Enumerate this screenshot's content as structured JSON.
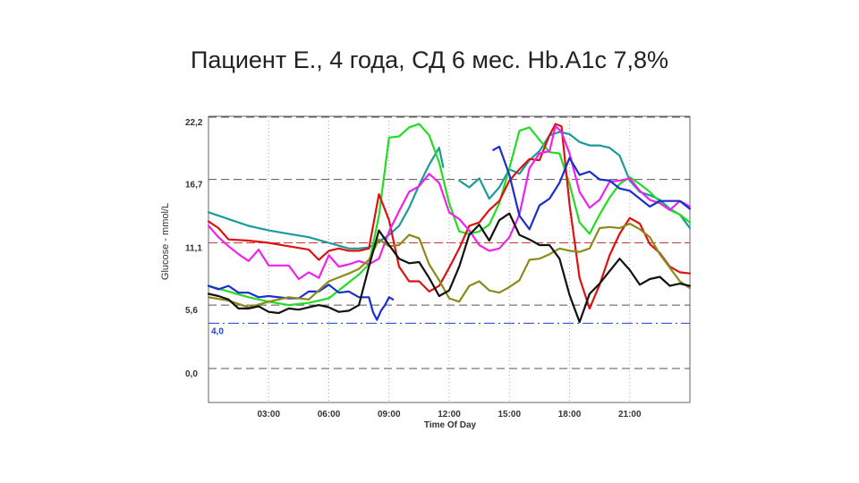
{
  "title": "Пациент Е., 4 года, СД 6 мес. Hb.A1c 7,8%",
  "chart_data": {
    "type": "line",
    "title": "",
    "xlabel": "Time Of Day",
    "ylabel": "Glucose - mmol/L",
    "xlim": [
      0,
      24
    ],
    "ylim": [
      0,
      22.2
    ],
    "x_ticks": [
      {
        "value": 3,
        "label": "03:00"
      },
      {
        "value": 6,
        "label": "06:00"
      },
      {
        "value": 9,
        "label": "09:00"
      },
      {
        "value": 12,
        "label": "12:00"
      },
      {
        "value": 15,
        "label": "15:00"
      },
      {
        "value": 18,
        "label": "18:00"
      },
      {
        "value": 21,
        "label": "21:00"
      }
    ],
    "y_ticks": [
      {
        "value": 0,
        "label": "0,0"
      },
      {
        "value": 5.6,
        "label": "5,6"
      },
      {
        "value": 11.1,
        "label": "11,1"
      },
      {
        "value": 16.7,
        "label": "16,7"
      },
      {
        "value": 22.2,
        "label": "22,2"
      }
    ],
    "reference_lines": [
      {
        "value": 4.0,
        "label": "4,0",
        "color": "#1a3fd6"
      },
      {
        "value": 11.1,
        "label": "",
        "color": "#cc3333"
      }
    ],
    "grid": true,
    "series": [
      {
        "color": "#1a9a9a",
        "x": [
          0,
          1,
          2,
          3,
          4,
          5,
          6,
          7,
          7.5,
          8,
          8.5,
          9,
          9.5,
          10,
          10.5,
          11,
          11.5,
          11.7
        ],
        "y": [
          13.8,
          13.2,
          12.6,
          12.2,
          11.9,
          11.6,
          11.1,
          10.6,
          10.6,
          10.7,
          11.2,
          11.8,
          12.6,
          14.2,
          16.2,
          18.0,
          19.5,
          17.8
        ]
      },
      {
        "color": "#1a9a9a",
        "x": [
          12.5,
          13,
          13.5,
          14,
          14.5,
          15,
          15.5,
          16,
          16.5,
          17,
          17.5,
          18,
          18.5,
          19,
          19.5,
          20,
          20.5,
          21,
          21.5,
          22,
          22.5,
          23,
          23.5,
          24
        ],
        "y": [
          16.6,
          16.0,
          16.8,
          15.0,
          16.0,
          17.6,
          17.2,
          18.4,
          19.2,
          20.6,
          20.9,
          20.7,
          20.0,
          19.7,
          19.7,
          19.5,
          18.8,
          16.6,
          15.6,
          15.3,
          14.9,
          14.1,
          13.6,
          12.4
        ]
      },
      {
        "color": "#22dd22",
        "x": [
          0,
          1,
          2,
          3,
          4,
          5,
          6,
          7,
          7.5,
          8,
          8.5,
          9,
          9.5,
          10,
          10.5,
          11,
          11.5,
          12,
          12.5,
          13,
          13.5,
          14,
          14.5,
          15,
          15.5,
          16,
          16.5,
          17,
          17.5,
          18,
          18.5,
          19,
          19.5,
          20,
          20.5,
          21,
          21.5,
          22,
          22.5,
          23,
          23.5,
          24
        ],
        "y": [
          7.3,
          6.8,
          6.3,
          5.9,
          5.6,
          5.8,
          6.2,
          7.6,
          8.3,
          9.2,
          13.5,
          20.4,
          20.5,
          21.3,
          21.6,
          20.6,
          18.2,
          14.6,
          12.1,
          11.9,
          12.1,
          12.7,
          14.6,
          17.7,
          21.0,
          21.3,
          20.2,
          19.1,
          19.0,
          16.3,
          12.9,
          11.9,
          13.6,
          15.1,
          16.3,
          16.9,
          16.3,
          15.6,
          14.7,
          14.0,
          13.6,
          12.9
        ]
      },
      {
        "color": "#dd1111",
        "x": [
          0,
          0.5,
          1,
          2,
          3,
          4,
          5,
          5.5,
          6,
          6.5,
          7,
          7.5,
          8,
          8.5,
          9,
          9.5,
          10,
          10.5,
          11,
          11.5,
          12,
          12.5,
          13,
          13.5,
          14,
          14.5,
          15,
          15.5,
          16,
          16.5,
          17,
          17.3,
          17.6,
          18,
          18.5,
          19,
          19.5,
          20,
          20.5,
          21,
          21.5,
          22,
          22.5,
          23,
          23.5,
          24
        ],
        "y": [
          13.0,
          12.4,
          11.4,
          11.3,
          11.1,
          10.8,
          10.5,
          9.6,
          10.4,
          10.6,
          10.4,
          10.4,
          10.6,
          15.4,
          13.1,
          9.0,
          7.7,
          7.7,
          6.8,
          7.3,
          8.9,
          10.6,
          12.6,
          12.9,
          14.0,
          14.8,
          16.6,
          17.6,
          18.5,
          18.4,
          20.6,
          21.6,
          21.4,
          14.5,
          8.0,
          5.3,
          7.4,
          10.0,
          11.9,
          13.3,
          12.8,
          11.0,
          10.2,
          9.0,
          8.5,
          8.4
        ]
      },
      {
        "color": "#ee22ee",
        "x": [
          0,
          0.5,
          1,
          1.5,
          2,
          2.5,
          3,
          3.5,
          4,
          4.5,
          5,
          5.5,
          6,
          6.5,
          7,
          7.5,
          8,
          8.5,
          9,
          9.5,
          10,
          10.5,
          11,
          11.5,
          12,
          12.5,
          13,
          13.5,
          14,
          14.5,
          15,
          15.5,
          16,
          16.5,
          17,
          17.3,
          17.6,
          18,
          18.5,
          19,
          19.5,
          20,
          20.5,
          21,
          21.5,
          22,
          22.5,
          23,
          23.5,
          24
        ],
        "y": [
          12.6,
          11.6,
          10.8,
          10.1,
          9.5,
          10.5,
          9.1,
          9.1,
          9.1,
          7.9,
          8.5,
          8.0,
          10.0,
          9.0,
          9.2,
          9.5,
          9.2,
          9.7,
          12.1,
          13.9,
          15.6,
          16.1,
          17.2,
          16.4,
          13.8,
          13.2,
          12.2,
          10.9,
          10.4,
          10.6,
          11.6,
          13.6,
          17.7,
          19.0,
          19.2,
          21.4,
          20.9,
          19.0,
          15.6,
          14.2,
          14.9,
          16.5,
          16.6,
          16.8,
          15.7,
          14.9,
          14.6,
          14.0,
          14.8,
          14.3
        ]
      },
      {
        "color": "#1a2ecc",
        "x": [
          0,
          0.5,
          1,
          1.5,
          2,
          2.5,
          3,
          3.5,
          4,
          4.5,
          5,
          5.5,
          6,
          6.5,
          7,
          7.5,
          8,
          8.2,
          8.4,
          8.6,
          8.8,
          9,
          9.2
        ],
        "y": [
          7.3,
          7.0,
          7.3,
          6.7,
          6.7,
          6.3,
          6.4,
          6.3,
          6.2,
          6.2,
          6.8,
          6.8,
          7.4,
          6.7,
          6.8,
          6.3,
          6.3,
          5.0,
          4.3,
          5.1,
          5.6,
          6.3,
          6.1
        ]
      },
      {
        "color": "#1a2ecc",
        "x": [
          14.2,
          14.5,
          15,
          15.5,
          16,
          16.5,
          17,
          17.5,
          18,
          18.5,
          19,
          19.5,
          20,
          20.5,
          21,
          21.5,
          22,
          22.5,
          23,
          23.5,
          24
        ],
        "y": [
          19.3,
          19.6,
          17.1,
          13.5,
          12.3,
          14.4,
          15.0,
          16.4,
          18.6,
          17.1,
          17.4,
          16.7,
          16.6,
          15.9,
          15.7,
          15.0,
          14.3,
          14.8,
          14.8,
          14.8,
          14.1
        ]
      },
      {
        "color": "#8b8a1a",
        "x": [
          0,
          1,
          2,
          3,
          4,
          5,
          6,
          7,
          7.5,
          8,
          8.5,
          9,
          9.5,
          10,
          10.5,
          11,
          11.5,
          12,
          12.5,
          13,
          13.5,
          14,
          14.5,
          15,
          15.5,
          16,
          16.5,
          17,
          17.5,
          18,
          18.5,
          19,
          19.5,
          20,
          20.5,
          21,
          21.5,
          22,
          22.5,
          23,
          23.5,
          24
        ],
        "y": [
          6.3,
          6.0,
          5.4,
          5.9,
          6.3,
          6.1,
          7.7,
          8.4,
          8.8,
          9.6,
          11.4,
          10.8,
          10.9,
          11.8,
          11.5,
          9.2,
          7.8,
          6.2,
          5.9,
          7.3,
          7.7,
          6.9,
          6.7,
          7.2,
          7.8,
          9.6,
          9.7,
          10.1,
          10.6,
          10.4,
          10.3,
          10.6,
          12.4,
          12.5,
          12.4,
          12.8,
          12.3,
          11.6,
          10.1,
          8.9,
          7.7,
          7.1
        ]
      },
      {
        "color": "#111111",
        "x": [
          0,
          0.5,
          1,
          1.5,
          2,
          2.5,
          3,
          3.5,
          4,
          4.5,
          5,
          5.5,
          6,
          6.5,
          7,
          7.5,
          8,
          8.5,
          9,
          9.5,
          10,
          10.5,
          11,
          11.5,
          12,
          12.5,
          13,
          13.5,
          14,
          14.5,
          15,
          15.5,
          16,
          16.5,
          17,
          17.5,
          18,
          18.5,
          19,
          19.5,
          20,
          20.5,
          21,
          21.5,
          22,
          22.5,
          23,
          23.5,
          24
        ],
        "y": [
          6.6,
          6.4,
          6.1,
          5.3,
          5.3,
          5.5,
          5.0,
          4.9,
          5.3,
          5.2,
          5.4,
          5.6,
          5.4,
          5.0,
          5.1,
          5.6,
          9.0,
          12.2,
          10.9,
          9.7,
          9.3,
          9.4,
          8.0,
          6.4,
          6.9,
          9.0,
          11.8,
          12.7,
          11.3,
          13.1,
          13.7,
          11.8,
          11.4,
          10.9,
          10.9,
          9.7,
          6.5,
          4.1,
          6.6,
          7.5,
          8.6,
          9.7,
          8.7,
          7.4,
          7.9,
          8.1,
          7.3,
          7.5,
          7.3
        ]
      }
    ]
  }
}
